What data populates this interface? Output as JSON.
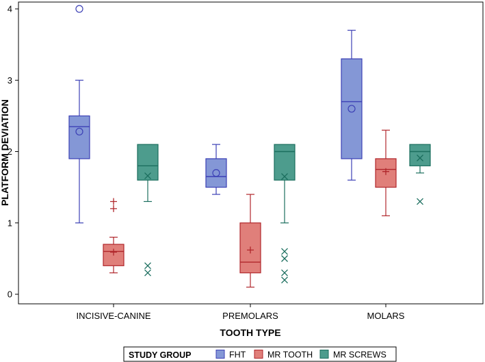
{
  "chart_data": {
    "type": "box",
    "xlabel": "TOOTH TYPE",
    "ylabel": "PLATFORM DEVIATION",
    "ylim": [
      -0.05,
      4.1
    ],
    "yticks": [
      "0",
      "1",
      "2",
      "3",
      "4"
    ],
    "ytick_values": [
      0,
      1,
      2,
      3,
      4
    ],
    "categories": [
      "INCISIVE-CANINE",
      "PREMOLARS",
      "MOLARS"
    ],
    "legend": {
      "title": "STUDY GROUP",
      "position": "bottom",
      "entries": [
        "FHT",
        "MR TOOTH",
        "MR SCREWS"
      ]
    },
    "series": [
      {
        "name": "FHT",
        "fill": "#8497d6",
        "stroke": "#3b3fb5",
        "marker": "circle",
        "boxes": [
          {
            "category": "INCISIVE-CANINE",
            "min": 1.0,
            "q1": 1.9,
            "median": 2.35,
            "q3": 2.5,
            "max": 3.0,
            "mean": 2.28,
            "outliers": [
              4.0
            ]
          },
          {
            "category": "PREMOLARS",
            "min": 1.4,
            "q1": 1.5,
            "median": 1.65,
            "q3": 1.9,
            "max": 2.1,
            "mean": 1.7,
            "outliers": []
          },
          {
            "category": "MOLARS",
            "min": 1.6,
            "q1": 1.9,
            "median": 2.7,
            "q3": 3.3,
            "max": 3.7,
            "mean": 2.6,
            "outliers": []
          }
        ]
      },
      {
        "name": "MR TOOTH",
        "fill": "#e07f7a",
        "stroke": "#b0262b",
        "marker": "plus",
        "boxes": [
          {
            "category": "INCISIVE-CANINE",
            "min": 0.3,
            "q1": 0.4,
            "median": 0.6,
            "q3": 0.7,
            "max": 0.8,
            "mean": 0.59,
            "outliers": [
              1.2,
              1.3
            ]
          },
          {
            "category": "PREMOLARS",
            "min": 0.1,
            "q1": 0.3,
            "median": 0.45,
            "q3": 1.0,
            "max": 1.4,
            "mean": 0.62,
            "outliers": []
          },
          {
            "category": "MOLARS",
            "min": 1.1,
            "q1": 1.5,
            "median": 1.75,
            "q3": 1.9,
            "max": 2.3,
            "mean": 1.72,
            "outliers": []
          }
        ]
      },
      {
        "name": "MR SCREWS",
        "fill": "#4d9c8d",
        "stroke": "#1b6e5e",
        "marker": "x",
        "boxes": [
          {
            "category": "INCISIVE-CANINE",
            "min": 1.3,
            "q1": 1.6,
            "median": 1.8,
            "q3": 2.1,
            "max": 2.1,
            "mean": 1.66,
            "outliers": [
              0.3,
              0.4
            ]
          },
          {
            "category": "PREMOLARS",
            "min": 1.0,
            "q1": 1.6,
            "median": 2.0,
            "q3": 2.1,
            "max": 2.1,
            "mean": 1.65,
            "outliers": [
              0.2,
              0.3,
              0.5,
              0.6
            ]
          },
          {
            "category": "MOLARS",
            "min": 1.7,
            "q1": 1.8,
            "median": 2.0,
            "q3": 2.1,
            "max": 2.1,
            "mean": 1.91,
            "outliers": [
              1.3
            ]
          }
        ]
      }
    ]
  }
}
